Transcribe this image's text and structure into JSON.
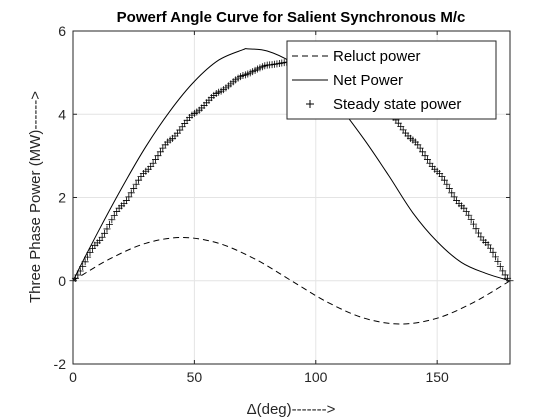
{
  "chart_data": {
    "type": "line",
    "title": "Powerf Angle Curve for Salient Synchronous M/c",
    "xlabel": "Δ(deg)------->",
    "ylabel": "Three Phase Power (MW)------>",
    "xlim": [
      0,
      180
    ],
    "ylim": [
      -2,
      6
    ],
    "xticks": [
      0,
      50,
      100,
      150
    ],
    "yticks": [
      -2,
      0,
      2,
      4,
      6
    ],
    "grid": true,
    "legend_position": "top-right",
    "series": [
      {
        "name": "Reluct power",
        "style": "dashed",
        "color": "#000000",
        "x": [
          0,
          15,
          30,
          45,
          60,
          75,
          90,
          105,
          120,
          135,
          150,
          165,
          180
        ],
        "y": [
          0,
          0.52,
          0.9,
          1.04,
          0.9,
          0.52,
          0,
          -0.52,
          -0.9,
          -1.04,
          -0.9,
          -0.52,
          0
        ]
      },
      {
        "name": "Net Power",
        "style": "solid",
        "color": "#000000",
        "x": [
          0,
          10,
          20,
          30,
          40,
          50,
          60,
          70,
          72,
          80,
          90,
          100,
          110,
          120,
          130,
          140,
          150,
          160,
          170,
          180
        ],
        "y": [
          0,
          1.14,
          2.22,
          3.22,
          4.08,
          4.79,
          5.3,
          5.55,
          5.57,
          5.52,
          5.25,
          4.79,
          4.16,
          3.39,
          2.53,
          1.63,
          0.94,
          0.44,
          0.18,
          0
        ]
      },
      {
        "name": "Steady state power",
        "style": "plus-markers",
        "color": "#000000",
        "x": [
          0,
          10,
          20,
          30,
          40,
          50,
          60,
          70,
          80,
          90,
          100,
          110,
          120,
          130,
          140,
          150,
          160,
          170,
          180
        ],
        "y": [
          0,
          0.91,
          1.8,
          2.63,
          3.38,
          4.02,
          4.53,
          4.93,
          5.18,
          5.26,
          5.18,
          4.94,
          4.55,
          4.03,
          3.38,
          2.63,
          1.8,
          0.92,
          0
        ]
      }
    ]
  }
}
